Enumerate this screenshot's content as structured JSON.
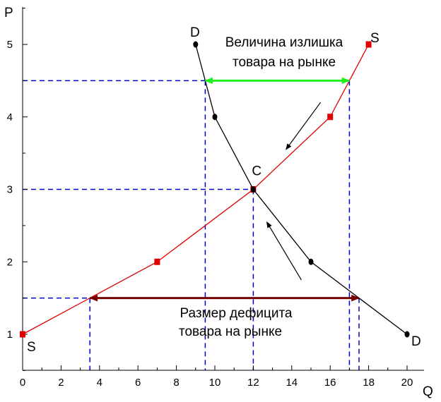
{
  "chart_data": {
    "type": "line",
    "xlabel": "Q",
    "ylabel": "P",
    "xlim": [
      0,
      21
    ],
    "ylim": [
      0.5,
      5.5
    ],
    "x_ticks": [
      0,
      2,
      4,
      6,
      8,
      10,
      12,
      14,
      16,
      18,
      20
    ],
    "x_tick_labels": [
      "0",
      "2",
      "4",
      "6",
      "8",
      "10",
      "12",
      "14",
      "16",
      "18",
      "20"
    ],
    "y_ticks": [
      1,
      2,
      3,
      4,
      5
    ],
    "y_tick_labels": [
      "1",
      "2",
      "3",
      "4",
      "5"
    ],
    "grid": false,
    "series": [
      {
        "name": "S",
        "color": "#e00000",
        "marker": "square",
        "points": [
          [
            0,
            1
          ],
          [
            7,
            2
          ],
          [
            12,
            3
          ],
          [
            16,
            4
          ],
          [
            18,
            5
          ]
        ]
      },
      {
        "name": "D",
        "color": "#000000",
        "marker": "circle",
        "points": [
          [
            9,
            5
          ],
          [
            10,
            4
          ],
          [
            12,
            3
          ],
          [
            15,
            2
          ],
          [
            20,
            1
          ]
        ]
      }
    ],
    "curve_labels": [
      {
        "text": "D",
        "x": 9,
        "y": 5,
        "position": "above-left"
      },
      {
        "text": "S",
        "x": 18,
        "y": 5,
        "position": "right"
      },
      {
        "text": "S",
        "x": 0,
        "y": 1,
        "position": "below-right"
      },
      {
        "text": "D",
        "x": 20,
        "y": 1,
        "position": "right"
      }
    ],
    "equilibrium": {
      "label": "C",
      "q": 12,
      "p": 3
    },
    "guides": [
      {
        "p": 4.5,
        "q_values": [
          9.5,
          17
        ]
      },
      {
        "p": 3,
        "q_values": [
          12
        ]
      },
      {
        "p": 1.5,
        "q_values": [
          3.5,
          17.5
        ]
      }
    ],
    "surplus": {
      "label_lines": [
        "Величина излишка",
        "товара на рынке"
      ],
      "p": 4.5,
      "q_from": 9.5,
      "q_to": 17,
      "color": "#22ee22"
    },
    "shortage": {
      "label_lines": [
        "Размер дефицита",
        "товара на рынке"
      ],
      "p": 1.5,
      "q_from": 3.5,
      "q_to": 17.5,
      "color": "#7a0000"
    },
    "guide_color": "#0000cc",
    "adjustment_arrows": [
      {
        "from": [
          15.5,
          4.2
        ],
        "to": [
          13.7,
          3.55
        ]
      },
      {
        "from": [
          14.5,
          1.75
        ],
        "to": [
          12.7,
          2.55
        ]
      }
    ]
  }
}
